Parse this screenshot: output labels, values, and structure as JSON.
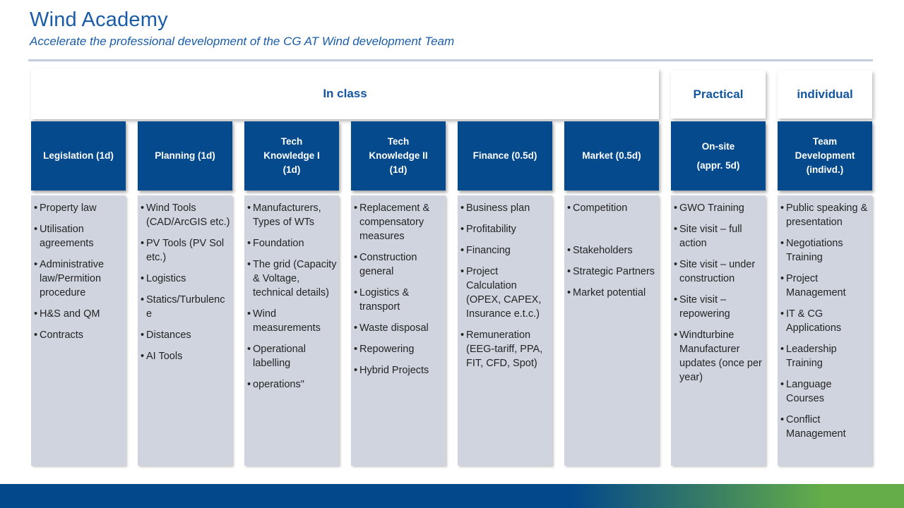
{
  "page": {
    "title": "Wind Academy",
    "subtitle": "Accelerate the professional development of the CG AT Wind development Team"
  },
  "groups": {
    "in_class": "In class",
    "practical": "Practical",
    "individual": "individual"
  },
  "columns": [
    {
      "header": "Legislation (1d)",
      "items": [
        "Property law",
        "Utilisation agreements",
        "Administrative law/Permition procedure",
        "H&S and QM",
        "Contracts"
      ]
    },
    {
      "header": "Planning (1d)",
      "items": [
        "Wind Tools (CAD/ArcGIS etc.)",
        "PV Tools (PV Sol etc.)",
        "Logistics",
        "Statics/Turbulence",
        "Distances",
        "AI Tools"
      ]
    },
    {
      "header": "Tech\nKnowledge I\n(1d)",
      "items": [
        "Manufacturers, Types of WTs",
        "Foundation",
        "The grid (Capacity & Voltage, technical details)",
        "Wind measurements",
        "Operational labelling",
        "operations\""
      ]
    },
    {
      "header": "Tech\nKnowledge II\n(1d)",
      "items": [
        "Replacement & compensatory measures",
        "Construction general",
        "Logistics & transport",
        "Waste disposal",
        "Repowering",
        "Hybrid Projects"
      ]
    },
    {
      "header": "Finance (0.5d)",
      "items": [
        "Business plan",
        "Profitability",
        "Financing",
        "Project Calculation (OPEX, CAPEX, Insurance e.t.c.)",
        "Remuneration (EEG-tariff, PPA, FIT, CFD, Spot)"
      ]
    },
    {
      "header": "Market (0.5d)",
      "items": [
        "Competition",
        "",
        "Stakeholders",
        "Strategic Partners",
        "Market potential"
      ]
    },
    {
      "header": "On-site\n(appr. 5d)",
      "items": [
        "GWO Training",
        "Site visit – full action",
        "Site visit – under construction",
        "Site visit – repowering",
        "Windturbine Manufacturer updates (once per year)"
      ]
    },
    {
      "header": "Team\nDevelopment\n(indivd.)",
      "items": [
        "Public speaking & presentation",
        "Negotiations Training",
        "Project Management",
        "IT & CG Applications",
        "Leadership Training",
        "Language Courses",
        "Conflict Management"
      ]
    }
  ],
  "colors": {
    "title_blue": "#1a5ca8",
    "header_box_blue": "#054a8c",
    "group_label_blue": "#12569f",
    "body_box_gray": "#cfd4df",
    "divider_gray_blue": "#c3cdde",
    "accent_bar_blue": "#03488b",
    "accent_bar_green": "#64ad49"
  }
}
